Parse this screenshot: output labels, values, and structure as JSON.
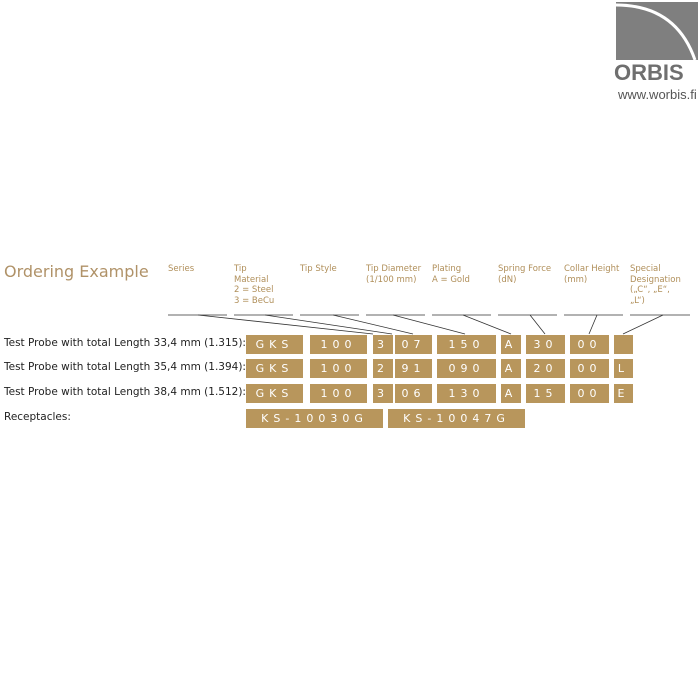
{
  "logo": {
    "name": "ORBIS",
    "url": "www.worbis.fi"
  },
  "title": "Ordering Example",
  "headers": [
    "Series",
    "Tip\nMaterial\n2 = Steel\n3 = BeCu",
    "Tip Style",
    "Tip Diameter\n(1/100 mm)",
    "Plating\nA = Gold",
    "Spring Force\n(dN)",
    "Collar Height\n(mm)",
    "Special\nDesignation\n(„C“, „E“,\n„L“)"
  ],
  "rows": [
    {
      "label": "Test Probe with total Length 33,4 mm (1.315):",
      "codes": [
        "GKS",
        "100",
        "3",
        "07",
        "150",
        "A",
        "30",
        "00",
        ""
      ]
    },
    {
      "label": "Test Probe with total Length 35,4 mm (1.394):",
      "codes": [
        "GKS",
        "100",
        "2",
        "91",
        "090",
        "A",
        "20",
        "00",
        "L"
      ]
    },
    {
      "label": "Test Probe with total Length 38,4 mm (1.512):",
      "codes": [
        "GKS",
        "100",
        "3",
        "06",
        "130",
        "A",
        "15",
        "00",
        "E"
      ]
    }
  ],
  "receptacles": {
    "label": "Receptacles:",
    "codes": [
      "KS-10030G",
      "KS-10047G"
    ]
  },
  "colors": {
    "box": "#b8965c",
    "header_text": "#b08f5a",
    "title": "#b09268"
  }
}
